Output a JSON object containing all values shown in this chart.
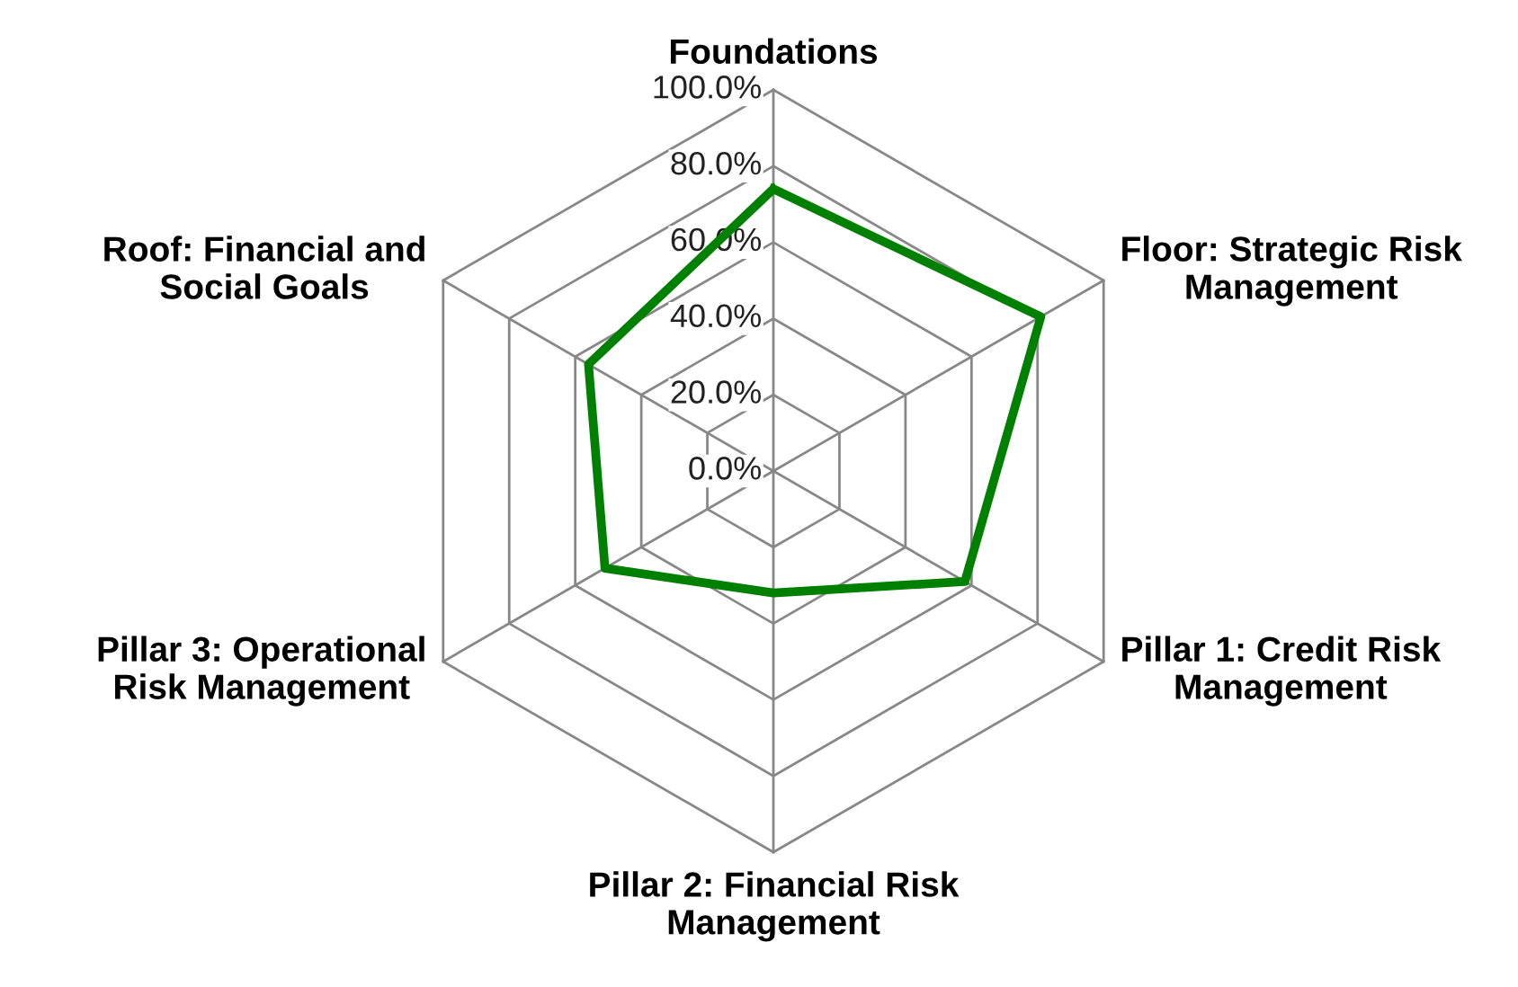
{
  "chart_data": {
    "type": "radar",
    "categories": [
      "Foundations",
      "Floor: Strategic Risk Management",
      "Pillar 1: Credit Risk Management",
      "Pillar 2: Financial Risk Management",
      "Pillar 3: Operational Risk Management",
      "Roof: Financial and Social Goals"
    ],
    "series": [
      {
        "color": "#008000",
        "values": [
          74,
          81,
          58,
          32,
          51,
          56
        ]
      }
    ],
    "ylim": [
      0,
      100
    ],
    "yticks": [
      {
        "value": 0,
        "label": "0.0%"
      },
      {
        "value": 20,
        "label": "20.0%"
      },
      {
        "value": 40,
        "label": "40.0%"
      },
      {
        "value": 60,
        "label": "60.0%"
      },
      {
        "value": 80,
        "label": "80.0%"
      },
      {
        "value": 100,
        "label": "100.0%"
      }
    ],
    "marker": "none",
    "line_style": "solid",
    "grid": true
  }
}
